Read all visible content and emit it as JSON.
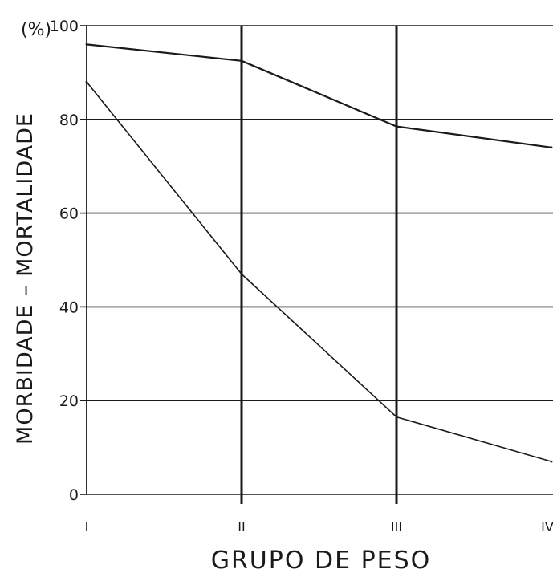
{
  "chart_data": {
    "type": "line",
    "xlabel": "GRUPO DE PESO",
    "ylabel": "MORBIDADE  –  MORTALIDADE",
    "yunit": "(%)",
    "categories": [
      "I",
      "II",
      "III",
      "IV"
    ],
    "ylim": [
      0,
      100
    ],
    "yticks": [
      "0",
      "20",
      "40",
      "60",
      "80",
      "100"
    ],
    "grid": true,
    "series": [
      {
        "values": [
          96,
          92.5,
          78.5,
          74
        ]
      },
      {
        "values": [
          88,
          47,
          16.5,
          7
        ]
      }
    ],
    "line_color": "#1a1a1a",
    "grid_color": "#1a1a1a"
  }
}
